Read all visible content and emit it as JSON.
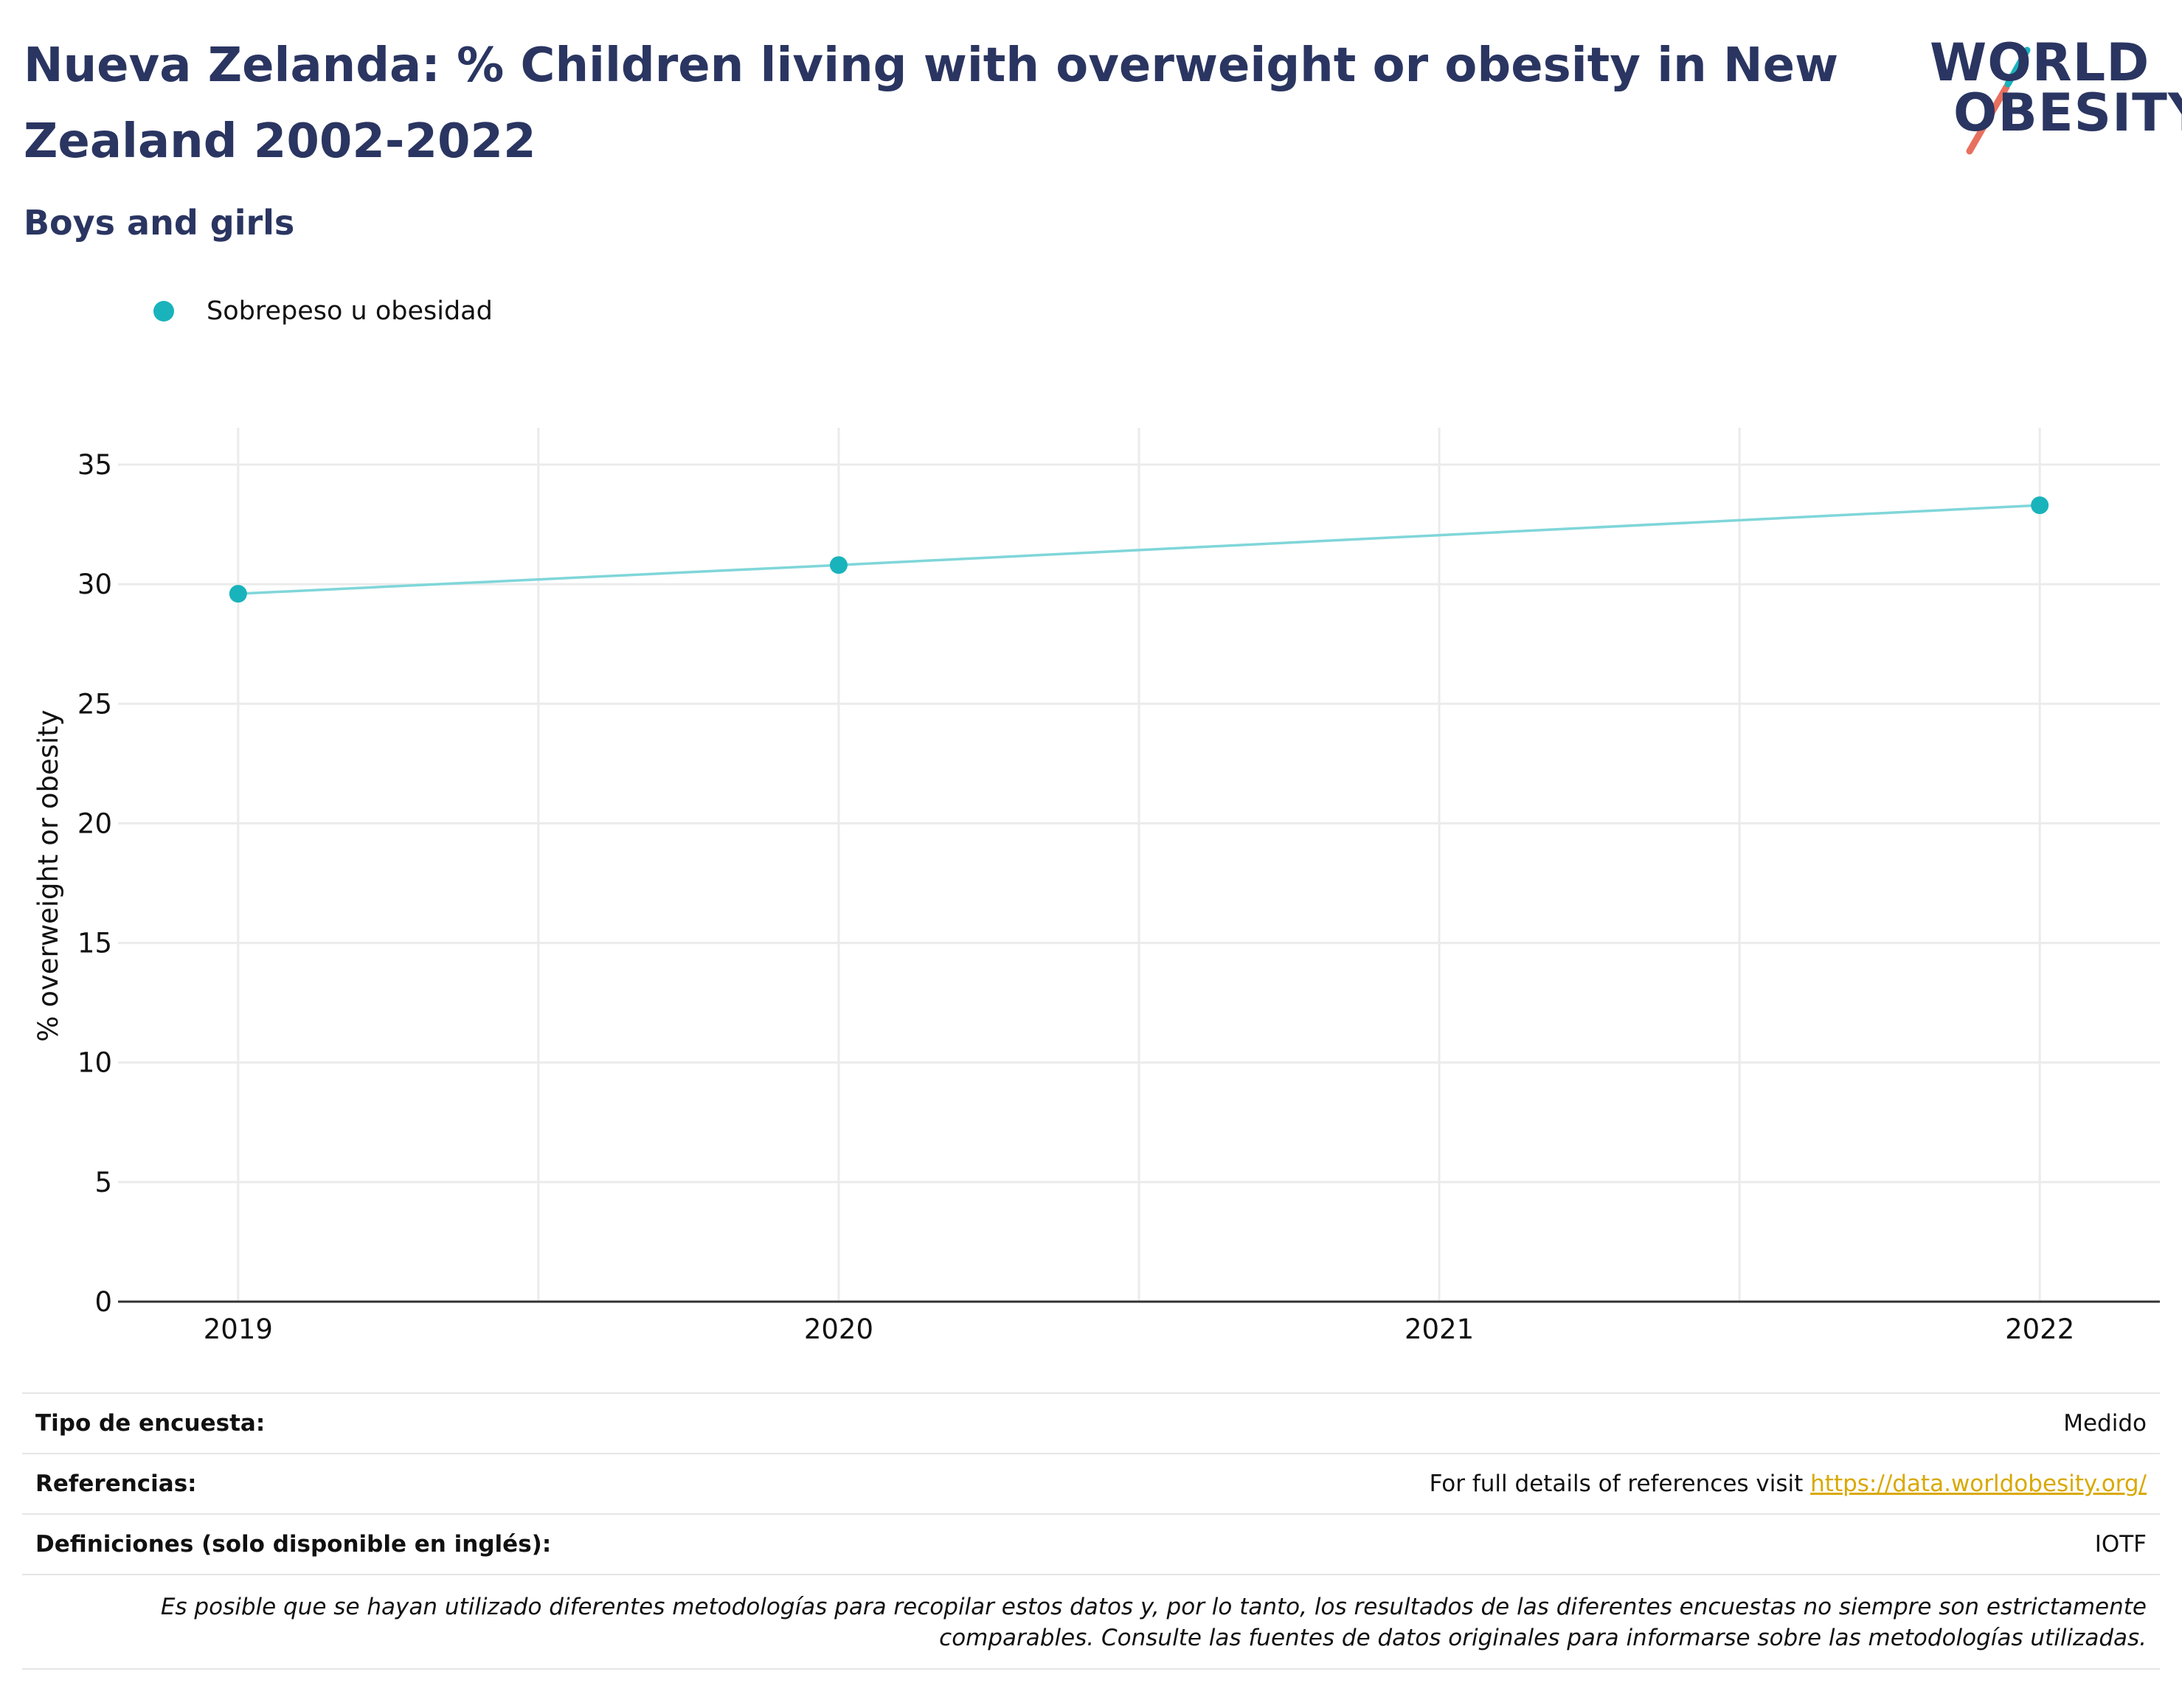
{
  "header": {
    "title": "Nueva Zelanda: % Children living with overweight or obesity in New Zealand 2002-2022",
    "subtitle": "Boys and girls"
  },
  "logo": {
    "line1": "WORLD",
    "line2": "OBESITY"
  },
  "colors": {
    "title": "#2a3561",
    "series": "#19b3bc",
    "series_line": "#7fd6d9",
    "link": "#d9a900",
    "grid": "#ebebeb",
    "logo_teal": "#19b3bc",
    "logo_coral": "#e8705e"
  },
  "chart_data": {
    "type": "line",
    "x": [
      2019,
      2020,
      2022
    ],
    "series": [
      {
        "name": "Sobrepeso u obesidad",
        "values": [
          29.6,
          30.8,
          33.3
        ]
      }
    ],
    "ylabel": "% overweight or obesity",
    "xlabel": "",
    "xlim": [
      2018.8,
      2022.2
    ],
    "ylim": [
      0,
      35
    ],
    "xticks": [
      "2019",
      "2020",
      "2021",
      "2022"
    ],
    "yticks": [
      "0",
      "5",
      "10",
      "15",
      "20",
      "25",
      "30",
      "35"
    ],
    "grid": true,
    "legend": "top-left"
  },
  "meta": {
    "rows": [
      {
        "key": "Tipo de encuesta:",
        "value": "Medido"
      },
      {
        "key": "Referencias:",
        "value": "For full details of references visit ",
        "link": "https://data.worldobesity.org/"
      },
      {
        "key": "Definiciones (solo disponible en inglés):",
        "value": "IOTF"
      }
    ],
    "note": "Es posible que se hayan utilizado diferentes metodologías para recopilar estos datos y, por lo tanto, los resultados de las diferentes encuestas no siempre son estrictamente comparables. Consulte las fuentes de datos originales para informarse sobre las metodologías utilizadas."
  }
}
